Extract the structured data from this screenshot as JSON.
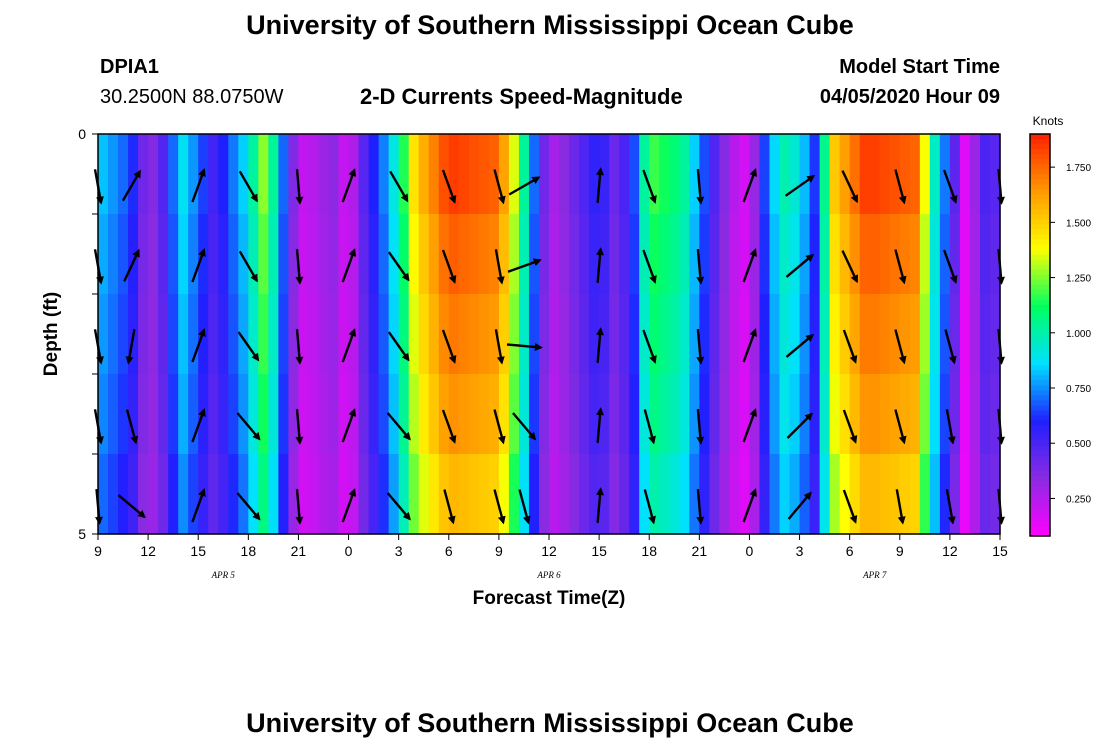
{
  "header": {
    "title": "University of Southern Mississippi Ocean Cube",
    "station_id": "DPIA1",
    "station_coords": "30.2500N 88.0750W",
    "start_label": "Model Start Time",
    "start_time": "04/05/2020 Hour 09"
  },
  "footer": {
    "title": "University of Southern Mississippi Ocean Cube"
  },
  "chart_data": {
    "type": "heatmap",
    "title": "2-D Currents Speed-Magnitude",
    "xlabel": "Forecast Time(Z)",
    "ylabel": "Depth (ft)",
    "units": "Knots",
    "x_hours": [
      0,
      54
    ],
    "x_ticks": [
      {
        "h": 0,
        "label": "9"
      },
      {
        "h": 3,
        "label": "12"
      },
      {
        "h": 6,
        "label": "15"
      },
      {
        "h": 9,
        "label": "18"
      },
      {
        "h": 12,
        "label": "21"
      },
      {
        "h": 15,
        "label": "0"
      },
      {
        "h": 18,
        "label": "3"
      },
      {
        "h": 21,
        "label": "6"
      },
      {
        "h": 24,
        "label": "9"
      },
      {
        "h": 27,
        "label": "12"
      },
      {
        "h": 30,
        "label": "15"
      },
      {
        "h": 33,
        "label": "18"
      },
      {
        "h": 36,
        "label": "21"
      },
      {
        "h": 39,
        "label": "0"
      },
      {
        "h": 42,
        "label": "3"
      },
      {
        "h": 45,
        "label": "6"
      },
      {
        "h": 48,
        "label": "9"
      },
      {
        "h": 51,
        "label": "12"
      },
      {
        "h": 54,
        "label": "15"
      }
    ],
    "date_labels": [
      {
        "h": 7.5,
        "label": "APR 5"
      },
      {
        "h": 27,
        "label": "APR 6"
      },
      {
        "h": 46.5,
        "label": "APR 7"
      }
    ],
    "ylim": [
      0,
      5
    ],
    "y_ticks": [
      {
        "v": 0,
        "label": "0"
      },
      {
        "v": 1,
        "label": ""
      },
      {
        "v": 2,
        "label": ""
      },
      {
        "v": 3,
        "label": ""
      },
      {
        "v": 4,
        "label": ""
      },
      {
        "v": 5,
        "label": "5"
      }
    ],
    "depth_levels": [
      0.5,
      1.5,
      2.5,
      3.5,
      4.5
    ],
    "colorbar": {
      "min": 0.08,
      "max": 1.9,
      "ticks": [
        "1.750",
        "1.500",
        "1.250",
        "1.000",
        "0.750",
        "0.500",
        "0.250"
      ],
      "tick_values": [
        1.75,
        1.5,
        1.25,
        1.0,
        0.75,
        0.5,
        0.25
      ],
      "colors": [
        "#ff00ff",
        "#8a2be2",
        "#2020ff",
        "#00e0ff",
        "#00ff60",
        "#ffff00",
        "#ff9900",
        "#ff2000"
      ]
    },
    "speed_profile": [
      [
        0,
        0.85
      ],
      [
        2,
        0.65
      ],
      [
        3,
        0.3
      ],
      [
        4,
        0.5
      ],
      [
        5,
        0.9
      ],
      [
        6,
        0.7
      ],
      [
        7,
        0.5
      ],
      [
        8,
        0.7
      ],
      [
        9,
        0.9
      ],
      [
        10,
        1.3
      ],
      [
        11,
        0.75
      ],
      [
        12,
        0.2
      ],
      [
        13,
        0.25
      ],
      [
        14,
        0.35
      ],
      [
        15,
        0.15
      ],
      [
        16,
        0.5
      ],
      [
        17,
        0.7
      ],
      [
        18,
        1.0
      ],
      [
        19,
        1.5
      ],
      [
        21,
        1.85
      ],
      [
        24,
        1.75
      ],
      [
        25,
        1.3
      ],
      [
        26,
        0.75
      ],
      [
        27,
        0.25
      ],
      [
        28,
        0.35
      ],
      [
        30,
        0.6
      ],
      [
        31,
        0.4
      ],
      [
        32,
        0.6
      ],
      [
        33,
        1.2
      ],
      [
        35,
        1.05
      ],
      [
        36,
        0.75
      ],
      [
        37,
        0.45
      ],
      [
        38,
        0.25
      ],
      [
        39,
        0.15
      ],
      [
        40,
        0.7
      ],
      [
        41,
        1.0
      ],
      [
        42,
        0.9
      ],
      [
        43,
        0.6
      ],
      [
        44,
        1.5
      ],
      [
        46,
        1.85
      ],
      [
        49,
        1.75
      ],
      [
        50,
        1.0
      ],
      [
        51,
        0.6
      ],
      [
        52,
        0.1
      ],
      [
        53,
        0.5
      ],
      [
        54,
        0.45
      ]
    ],
    "depth_factor": [
      1.0,
      0.96,
      0.93,
      0.9,
      0.85
    ],
    "vectors": [
      {
        "h": 0,
        "rows": [
          170,
          170,
          170,
          170,
          175
        ]
      },
      {
        "h": 2,
        "rows": [
          30,
          25,
          190,
          165,
          130
        ]
      },
      {
        "h": 6,
        "rows": null
      },
      {
        "h": 9,
        "rows": [
          150,
          150,
          145,
          140,
          140
        ]
      },
      {
        "h": 12,
        "rows": [
          175,
          175,
          175,
          175,
          175
        ]
      },
      {
        "h": 15,
        "rows": null
      },
      {
        "h": 18,
        "rows": [
          150,
          145,
          145,
          140,
          140
        ]
      },
      {
        "h": 21,
        "rows": [
          160,
          160,
          160,
          160,
          165
        ]
      },
      {
        "h": 24,
        "rows": [
          165,
          170,
          170,
          165,
          165
        ]
      },
      {
        "h": 25.5,
        "rows": [
          60,
          70,
          95,
          140,
          165
        ]
      },
      {
        "h": 30,
        "rows": [
          5,
          5,
          5,
          5,
          5
        ]
      },
      {
        "h": 33,
        "rows": [
          160,
          160,
          160,
          165,
          165
        ]
      },
      {
        "h": 36,
        "rows": [
          175,
          175,
          175,
          175,
          175
        ]
      },
      {
        "h": 39,
        "rows": [
          20,
          20,
          20,
          20,
          20
        ]
      },
      {
        "h": 42,
        "rows": [
          55,
          50,
          50,
          45,
          40
        ]
      },
      {
        "h": 45,
        "rows": [
          155,
          155,
          160,
          160,
          160
        ]
      },
      {
        "h": 48,
        "rows": [
          165,
          165,
          165,
          165,
          170
        ]
      },
      {
        "h": 51,
        "rows": [
          160,
          160,
          165,
          170,
          170
        ]
      },
      {
        "h": 54,
        "rows": [
          175,
          175,
          175,
          175,
          175
        ]
      }
    ],
    "upslope_rows_hours": [
      6,
      15
    ],
    "upslope_rows": [
      20,
      20,
      20,
      20,
      20
    ]
  }
}
